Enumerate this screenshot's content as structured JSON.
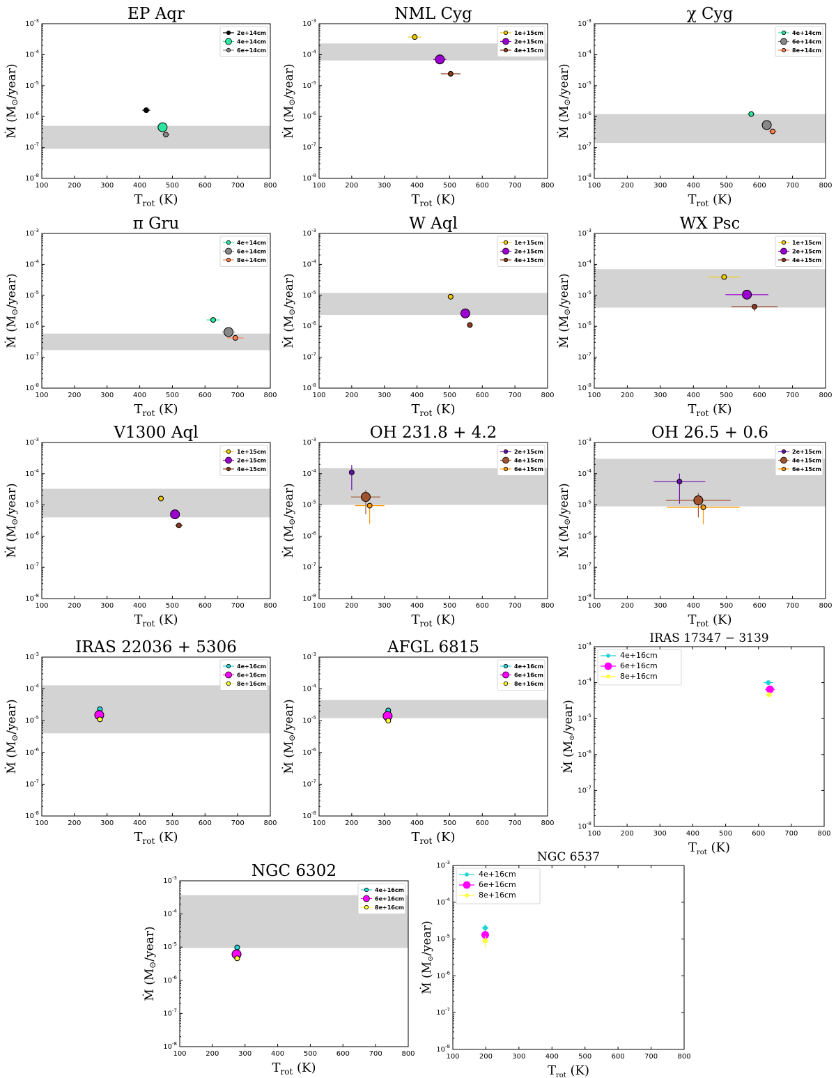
{
  "figure": {
    "x_axis_label_main": "T",
    "x_axis_label_sub": "rot",
    "x_axis_label_unit": " (K)",
    "y_axis_label": "Ṁ (M",
    "y_axis_label_sun": "⊙",
    "y_axis_label_unit": "/year)"
  },
  "chart_data": [
    {
      "name": "EP Aqr",
      "type": "scatter",
      "xlim": [
        100,
        800
      ],
      "ylim_exp": [
        -8,
        -3
      ],
      "xticks": [
        100,
        200,
        300,
        400,
        500,
        600,
        700,
        800
      ],
      "yticks_exp": [
        -8,
        -7,
        -6,
        -5,
        -4,
        -3
      ],
      "band": [
        9e-08,
        5e-07
      ],
      "series": [
        {
          "name": "2e+14cm",
          "color": "#000000",
          "size": "small",
          "x": 420,
          "y": 1.6e-06,
          "xerr": 12,
          "yerr_lo": 0,
          "yerr_hi": 0
        },
        {
          "name": "4e+14cm",
          "color": "#2ce6a0",
          "size": "big",
          "x": 470,
          "y": 4.5e-07,
          "xerr": 0,
          "yerr_lo": 0,
          "yerr_hi": 0
        },
        {
          "name": "6e+14cm",
          "color": "#888888",
          "size": "small",
          "x": 480,
          "y": 2.6e-07,
          "xerr": 12,
          "yerr_lo": 0,
          "yerr_hi": 0
        }
      ]
    },
    {
      "name": "NML Cyg",
      "type": "scatter",
      "xlim": [
        100,
        800
      ],
      "ylim_exp": [
        -8,
        -3
      ],
      "xticks": [
        100,
        200,
        300,
        400,
        500,
        600,
        700,
        800
      ],
      "yticks_exp": [
        -8,
        -7,
        -6,
        -5,
        -4,
        -3
      ],
      "band": [
        6.5e-05,
        0.00023
      ],
      "series": [
        {
          "name": "1e+15cm",
          "color": "#f0c800",
          "size": "small",
          "x": 393,
          "y": 0.00037,
          "xerr": 20,
          "yerr_lo": 0,
          "yerr_hi": 0
        },
        {
          "name": "2e+15cm",
          "color": "#9b00d0",
          "size": "big",
          "x": 470,
          "y": 7e-05,
          "xerr": 20,
          "yerr_lo": 0,
          "yerr_hi": 0
        },
        {
          "name": "4e+15cm",
          "color": "#8b3a1a",
          "size": "small",
          "x": 503,
          "y": 2.4e-05,
          "xerr": 30,
          "yerr_lo": 0,
          "yerr_hi": 0
        }
      ]
    },
    {
      "name": "χ Cyg",
      "type": "scatter",
      "xlim": [
        100,
        800
      ],
      "ylim_exp": [
        -8,
        -3
      ],
      "xticks": [
        100,
        200,
        300,
        400,
        500,
        600,
        700,
        800
      ],
      "yticks_exp": [
        -8,
        -7,
        -6,
        -5,
        -4,
        -3
      ],
      "band": [
        1.4e-07,
        1.2e-06
      ],
      "series": [
        {
          "name": "4e+14cm",
          "color": "#2ce6a0",
          "size": "small",
          "x": 575,
          "y": 1.2e-06,
          "xerr": 12,
          "yerr_lo": 0,
          "yerr_hi": 0
        },
        {
          "name": "6e+14cm",
          "color": "#888888",
          "size": "big",
          "x": 622,
          "y": 5.3e-07,
          "xerr": 12,
          "yerr_lo": 0,
          "yerr_hi": 0
        },
        {
          "name": "8e+14cm",
          "color": "#ff7f50",
          "size": "small",
          "x": 640,
          "y": 3.3e-07,
          "xerr": 12,
          "yerr_lo": 0,
          "yerr_hi": 0
        }
      ]
    },
    {
      "name": "π Gru",
      "type": "scatter",
      "xlim": [
        100,
        800
      ],
      "ylim_exp": [
        -8,
        -3
      ],
      "xticks": [
        100,
        200,
        300,
        400,
        500,
        600,
        700,
        800
      ],
      "yticks_exp": [
        -8,
        -7,
        -6,
        -5,
        -4,
        -3
      ],
      "band": [
        1.7e-07,
        5.8e-07
      ],
      "series": [
        {
          "name": "4e+14cm",
          "color": "#2ce6a0",
          "size": "small",
          "x": 625,
          "y": 1.6e-06,
          "xerr": 20,
          "yerr_lo": 0,
          "yerr_hi": 0
        },
        {
          "name": "6e+14cm",
          "color": "#888888",
          "size": "big",
          "x": 672,
          "y": 6.5e-07,
          "xerr": 20,
          "yerr_lo": 0,
          "yerr_hi": 0
        },
        {
          "name": "8e+14cm",
          "color": "#ff7f50",
          "size": "small",
          "x": 693,
          "y": 4.2e-07,
          "xerr": 25,
          "yerr_lo": 0,
          "yerr_hi": 0
        }
      ]
    },
    {
      "name": "W Aql",
      "type": "scatter",
      "xlim": [
        100,
        800
      ],
      "ylim_exp": [
        -8,
        -3
      ],
      "xticks": [
        100,
        200,
        300,
        400,
        500,
        600,
        700,
        800
      ],
      "yticks_exp": [
        -8,
        -7,
        -6,
        -5,
        -4,
        -3
      ],
      "band": [
        2.3e-06,
        1.2e-05
      ],
      "series": [
        {
          "name": "1e+15cm",
          "color": "#f0c800",
          "size": "small",
          "x": 503,
          "y": 9e-06,
          "xerr": 0,
          "yerr_lo": 0,
          "yerr_hi": 0
        },
        {
          "name": "2e+15cm",
          "color": "#9b00d0",
          "size": "big",
          "x": 548,
          "y": 2.6e-06,
          "xerr": 0,
          "yerr_lo": 0,
          "yerr_hi": 0
        },
        {
          "name": "4e+15cm",
          "color": "#8b3a1a",
          "size": "small",
          "x": 562,
          "y": 1.1e-06,
          "xerr": 8,
          "yerr_lo": 0,
          "yerr_hi": 0
        }
      ]
    },
    {
      "name": "WX Psc",
      "type": "scatter",
      "xlim": [
        100,
        800
      ],
      "ylim_exp": [
        -8,
        -3
      ],
      "xticks": [
        100,
        200,
        300,
        400,
        500,
        600,
        700,
        800
      ],
      "yticks_exp": [
        -8,
        -7,
        -6,
        -5,
        -4,
        -3
      ],
      "band": [
        4e-06,
        7e-05
      ],
      "series": [
        {
          "name": "1e+15cm",
          "color": "#f0c800",
          "size": "small",
          "x": 493,
          "y": 3.9e-05,
          "xerr": 50,
          "yerr_lo": 0,
          "yerr_hi": 0
        },
        {
          "name": "2e+15cm",
          "color": "#9b00d0",
          "size": "big",
          "x": 562,
          "y": 1.05e-05,
          "xerr": 65,
          "yerr_lo": 0,
          "yerr_hi": 0
        },
        {
          "name": "4e+15cm",
          "color": "#8b3a1a",
          "size": "small",
          "x": 585,
          "y": 4.3e-06,
          "xerr": 70,
          "yerr_lo": 1.2e-06,
          "yerr_hi": 0
        }
      ]
    },
    {
      "name": "V1300 Aql",
      "type": "scatter",
      "xlim": [
        100,
        800
      ],
      "ylim_exp": [
        -8,
        -3
      ],
      "xticks": [
        100,
        200,
        300,
        400,
        500,
        600,
        700,
        800
      ],
      "yticks_exp": [
        -8,
        -7,
        -6,
        -5,
        -4,
        -3
      ],
      "band": [
        4e-06,
        3.3e-05
      ],
      "series": [
        {
          "name": "1e+15cm",
          "color": "#f0c800",
          "size": "small",
          "x": 465,
          "y": 1.6e-05,
          "xerr": 0,
          "yerr_lo": 0,
          "yerr_hi": 0
        },
        {
          "name": "2e+15cm",
          "color": "#9b00d0",
          "size": "big",
          "x": 508,
          "y": 5e-06,
          "xerr": 0,
          "yerr_lo": 0,
          "yerr_hi": 0
        },
        {
          "name": "4e+15cm",
          "color": "#8b3a1a",
          "size": "small",
          "x": 520,
          "y": 2.2e-06,
          "xerr": 12,
          "yerr_lo": 0,
          "yerr_hi": 0
        }
      ]
    },
    {
      "name": "OH 231.8 + 4.2",
      "type": "scatter",
      "xlim": [
        100,
        800
      ],
      "ylim_exp": [
        -8,
        -3
      ],
      "xticks": [
        100,
        200,
        300,
        400,
        500,
        600,
        700,
        800
      ],
      "yticks_exp": [
        -8,
        -7,
        -6,
        -5,
        -4,
        -3
      ],
      "band": [
        1e-05,
        0.00015
      ],
      "series": [
        {
          "name": "2e+15cm",
          "color": "#6a0dad",
          "size": "small",
          "x": 200,
          "y": 0.00011,
          "xerr": 0,
          "yerr_lo": 8e-05,
          "yerr_hi": 8e-05
        },
        {
          "name": "4e+15cm",
          "color": "#a0522d",
          "size": "big",
          "x": 243,
          "y": 1.8e-05,
          "xerr": 45,
          "yerr_lo": 1.3e-05,
          "yerr_hi": 1.2e-05
        },
        {
          "name": "6e+15cm",
          "color": "#ff9900",
          "size": "small",
          "x": 255,
          "y": 9.5e-06,
          "xerr": 45,
          "yerr_lo": 7e-06,
          "yerr_hi": 0
        }
      ]
    },
    {
      "name": "OH 26.5 + 0.6",
      "type": "scatter",
      "xlim": [
        100,
        800
      ],
      "ylim_exp": [
        -8,
        -3
      ],
      "xticks": [
        100,
        200,
        300,
        400,
        500,
        600,
        700,
        800
      ],
      "yticks_exp": [
        -8,
        -7,
        -6,
        -5,
        -4,
        -3
      ],
      "band": [
        9e-06,
        0.0003
      ],
      "series": [
        {
          "name": "2e+15cm",
          "color": "#6a0dad",
          "size": "small",
          "x": 358,
          "y": 5.6e-05,
          "xerr": 78,
          "yerr_lo": 4.5e-05,
          "yerr_hi": 4.5e-05
        },
        {
          "name": "4e+15cm",
          "color": "#a0522d",
          "size": "big",
          "x": 415,
          "y": 1.4e-05,
          "xerr": 98,
          "yerr_lo": 1e-05,
          "yerr_hi": 1e-05
        },
        {
          "name": "6e+15cm",
          "color": "#ff9900",
          "size": "small",
          "x": 430,
          "y": 8.4e-06,
          "xerr": 110,
          "yerr_lo": 6e-06,
          "yerr_hi": 0
        }
      ]
    },
    {
      "name": "IRAS 22036 + 5306",
      "type": "scatter",
      "xlim": [
        100,
        800
      ],
      "ylim_exp": [
        -8,
        -3
      ],
      "xticks": [
        100,
        200,
        300,
        400,
        500,
        600,
        700,
        800
      ],
      "yticks_exp": [
        -8,
        -7,
        -6,
        -5,
        -4,
        -3
      ],
      "band": [
        4e-06,
        0.00013
      ],
      "series": [
        {
          "name": "4e+16cm",
          "color": "#22d3d3",
          "size": "small",
          "x": 278,
          "y": 2.3e-05,
          "xerr": 0,
          "yerr_lo": 0,
          "yerr_hi": 0
        },
        {
          "name": "6e+16cm",
          "color": "#ff00ff",
          "size": "big",
          "x": 276,
          "y": 1.5e-05,
          "xerr": 0,
          "yerr_lo": 0,
          "yerr_hi": 0
        },
        {
          "name": "8e+16cm",
          "color": "#ffff33",
          "size": "small",
          "x": 278,
          "y": 1.1e-05,
          "xerr": 0,
          "yerr_lo": 0,
          "yerr_hi": 0
        }
      ]
    },
    {
      "name": "AFGL 6815",
      "type": "scatter",
      "xlim": [
        100,
        800
      ],
      "ylim_exp": [
        -8,
        -3
      ],
      "xticks": [
        100,
        200,
        300,
        400,
        500,
        600,
        700,
        800
      ],
      "yticks_exp": [
        -8,
        -7,
        -6,
        -5,
        -4,
        -3
      ],
      "band": [
        1.2e-05,
        4.5e-05
      ],
      "series": [
        {
          "name": "4e+16cm",
          "color": "#22d3d3",
          "size": "small",
          "x": 312,
          "y": 2.1e-05,
          "xerr": 0,
          "yerr_lo": 0,
          "yerr_hi": 0
        },
        {
          "name": "6e+16cm",
          "color": "#ff00ff",
          "size": "big",
          "x": 310,
          "y": 1.4e-05,
          "xerr": 0,
          "yerr_lo": 0,
          "yerr_hi": 0
        },
        {
          "name": "8e+16cm",
          "color": "#ffff33",
          "size": "small",
          "x": 312,
          "y": 1e-05,
          "xerr": 0,
          "yerr_lo": 0,
          "yerr_hi": 0
        }
      ]
    },
    {
      "name": "IRAS 17347 − 3139",
      "type": "scatter",
      "style": "classic",
      "xlim": [
        100,
        800
      ],
      "ylim_exp": [
        -8,
        -3
      ],
      "xticks": [
        100,
        200,
        300,
        400,
        500,
        600,
        700,
        800
      ],
      "yticks_exp": [
        -8,
        -7,
        -6,
        -5,
        -4,
        -3
      ],
      "band": null,
      "series": [
        {
          "name": "4e+16cm",
          "color": "#22d3d3",
          "size": "small",
          "x": 630,
          "y": 0.0001,
          "xerr": 15,
          "yerr_lo": 0,
          "yerr_hi": 0
        },
        {
          "name": "6e+16cm",
          "color": "#ff00ff",
          "size": "big",
          "x": 635,
          "y": 6.5e-05,
          "xerr": 15,
          "yerr_lo": 0,
          "yerr_hi": 0
        },
        {
          "name": "8e+16cm",
          "color": "#ffff33",
          "size": "small",
          "x": 632,
          "y": 4.6e-05,
          "xerr": 10,
          "yerr_lo": 0,
          "yerr_hi": 0
        }
      ]
    },
    {
      "name": "NGC 6302",
      "type": "scatter",
      "xlim": [
        100,
        800
      ],
      "ylim_exp": [
        -8,
        -3
      ],
      "xticks": [
        100,
        200,
        300,
        400,
        500,
        600,
        700,
        800
      ],
      "yticks_exp": [
        -8,
        -7,
        -6,
        -5,
        -4,
        -3
      ],
      "band": [
        9.5e-06,
        0.00037
      ],
      "series": [
        {
          "name": "4e+16cm",
          "color": "#22d3d3",
          "size": "small",
          "x": 276,
          "y": 9.8e-06,
          "xerr": 0,
          "yerr_lo": 0,
          "yerr_hi": 0
        },
        {
          "name": "6e+16cm",
          "color": "#ff00ff",
          "size": "big",
          "x": 274,
          "y": 6.1e-06,
          "xerr": 0,
          "yerr_lo": 0,
          "yerr_hi": 0
        },
        {
          "name": "8e+16cm",
          "color": "#ffff33",
          "size": "small",
          "x": 276,
          "y": 4.6e-06,
          "xerr": 0,
          "yerr_lo": 0,
          "yerr_hi": 0
        }
      ]
    },
    {
      "name": "NGC 6537",
      "type": "scatter",
      "style": "classic",
      "xlim": [
        100,
        800
      ],
      "ylim_exp": [
        -8,
        -3
      ],
      "xticks": [
        100,
        200,
        300,
        400,
        500,
        600,
        700,
        800
      ],
      "yticks_exp": [
        -8,
        -7,
        -6,
        -5,
        -4,
        -3
      ],
      "band": null,
      "series": [
        {
          "name": "4e+16cm",
          "color": "#22d3d3",
          "size": "small",
          "x": 198,
          "y": 2e-05,
          "xerr": 10,
          "yerr_lo": 5e-06,
          "yerr_hi": 5e-06
        },
        {
          "name": "6e+16cm",
          "color": "#ff00ff",
          "size": "big",
          "x": 198,
          "y": 1.3e-05,
          "xerr": 10,
          "yerr_lo": 4e-06,
          "yerr_hi": 4e-06
        },
        {
          "name": "8e+16cm",
          "color": "#ffff33",
          "size": "small",
          "x": 198,
          "y": 9e-06,
          "xerr": 10,
          "yerr_lo": 3e-06,
          "yerr_hi": 3e-06
        }
      ]
    }
  ]
}
